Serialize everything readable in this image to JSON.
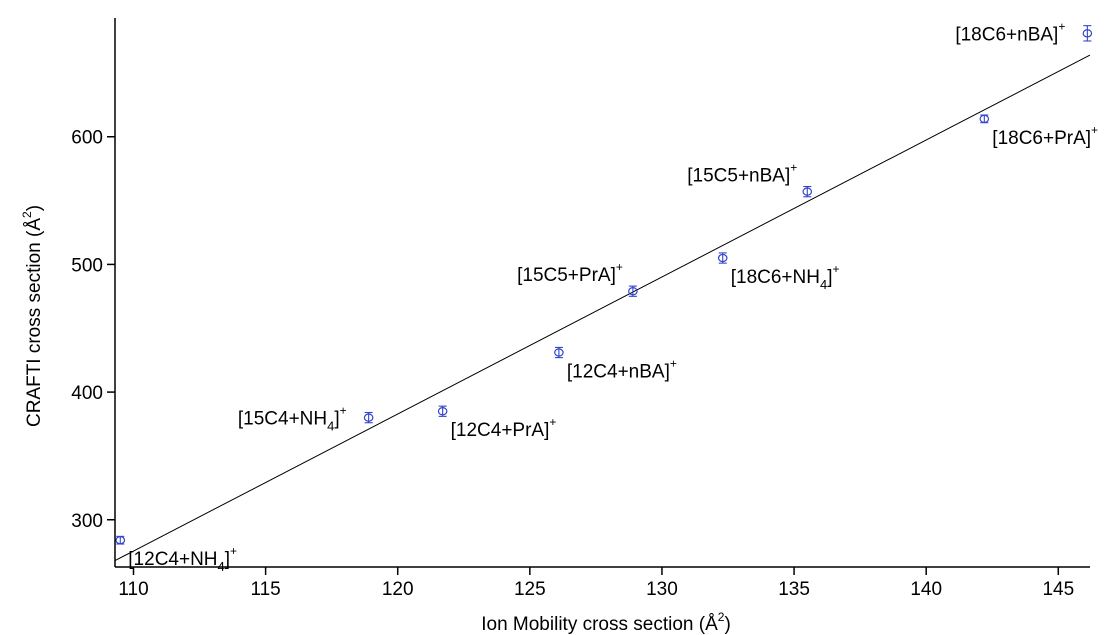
{
  "chart_data": {
    "type": "scatter",
    "xlabel": "Ion Mobility cross section (Å",
    "xlabel_sup": "2",
    "xlabel_end": ")",
    "ylabel": "CRAFTI cross section (Å",
    "ylabel_sup": "2",
    "ylabel_end": ")",
    "xlim": [
      109.3,
      146.2
    ],
    "ylim": [
      263,
      693
    ],
    "x_ticks": [
      110,
      115,
      120,
      125,
      130,
      135,
      140,
      145
    ],
    "y_ticks": [
      300,
      400,
      500,
      600
    ],
    "marker_color": "#3344cc",
    "fit_line": {
      "x": [
        109.3,
        146.2
      ],
      "y": [
        268,
        664
      ]
    },
    "points": [
      {
        "x": 109.5,
        "y": 284,
        "err": 3,
        "label_parts": [
          "[12C4+NH",
          "4",
          "]",
          "+"
        ],
        "label_pos": "below-right"
      },
      {
        "x": 118.9,
        "y": 380,
        "err": 4,
        "label_parts": [
          "[15C4+NH",
          "4",
          "]",
          "+"
        ],
        "label_pos": "left"
      },
      {
        "x": 121.7,
        "y": 385,
        "err": 4,
        "label_parts": [
          "[12C4+PrA]",
          "",
          "",
          "+"
        ],
        "label_pos": "below-right"
      },
      {
        "x": 126.1,
        "y": 431,
        "err": 4,
        "label_parts": [
          "[12C4+nBA]",
          "",
          "",
          "+"
        ],
        "label_pos": "below-right"
      },
      {
        "x": 128.9,
        "y": 479,
        "err": 4,
        "label_parts": [
          "[15C5+PrA]",
          "",
          "",
          "+"
        ],
        "label_pos": "above-left"
      },
      {
        "x": 132.3,
        "y": 505,
        "err": 4,
        "label_parts": [
          "[18C6+NH",
          "4",
          "]",
          "+"
        ],
        "label_pos": "below-right"
      },
      {
        "x": 135.5,
        "y": 557,
        "err": 4,
        "label_parts": [
          "[15C5+nBA]",
          "",
          "",
          "+"
        ],
        "label_pos": "above-left"
      },
      {
        "x": 142.2,
        "y": 614,
        "err": 3,
        "label_parts": [
          "[18C6+PrA]",
          "",
          "",
          "+"
        ],
        "label_pos": "below-right"
      },
      {
        "x": 146.1,
        "y": 681,
        "err": 6,
        "label_parts": [
          "[18C6+nBA]",
          "",
          "",
          "+"
        ],
        "label_pos": "left"
      }
    ]
  }
}
